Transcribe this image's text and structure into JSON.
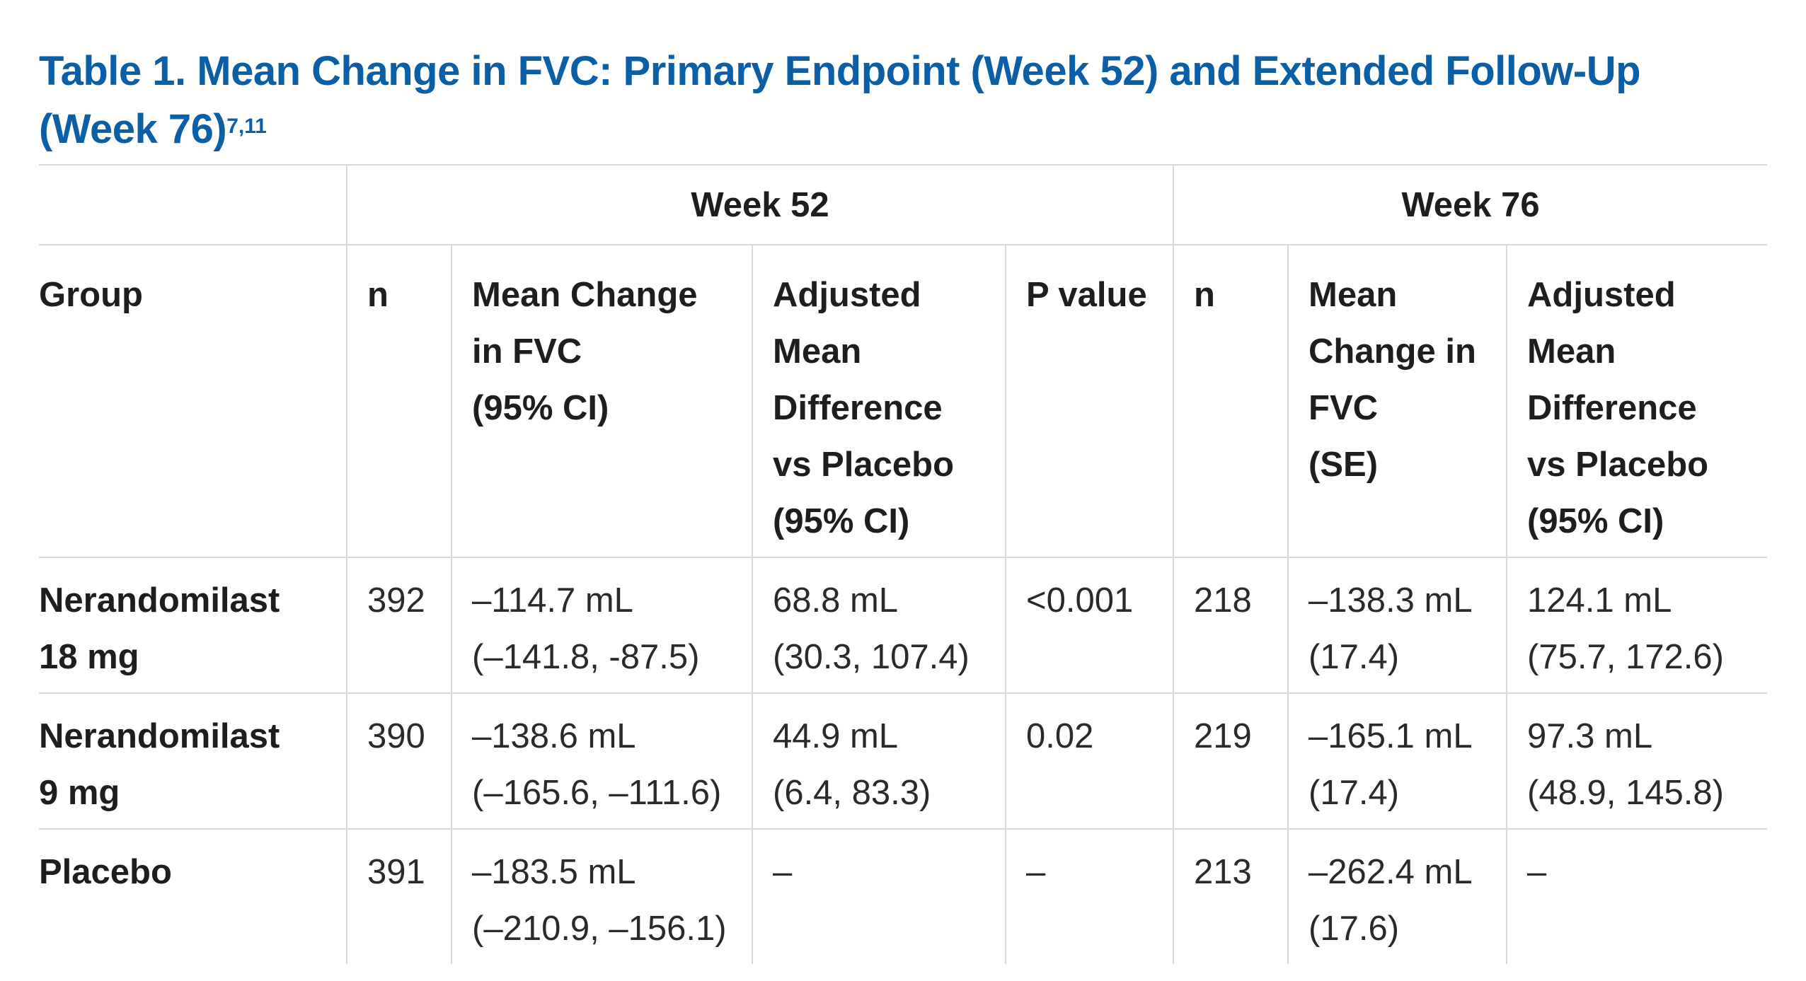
{
  "title": {
    "text": "Table 1. Mean Change in FVC: Primary Endpoint (Week 52) and Extended Follow-Up (Week 76)",
    "superscript": "7,11"
  },
  "table": {
    "span_headers": {
      "week52": "Week 52",
      "week76": "Week 76"
    },
    "columns": {
      "group": "Group",
      "n52": "n",
      "mean52": [
        "Mean Change",
        "in FVC",
        "(95% CI)"
      ],
      "adj52": [
        "Adjusted",
        "Mean",
        "Difference",
        "vs Placebo",
        "(95% CI)"
      ],
      "p52": "P value",
      "n76": "n",
      "mean76": [
        "Mean",
        "Change in",
        "FVC",
        "(SE)"
      ],
      "adj76": [
        "Adjusted",
        "Mean",
        "Difference",
        "vs Placebo",
        "(95% CI)"
      ]
    },
    "rows": [
      {
        "group": [
          "Nerandomilast",
          "18 mg"
        ],
        "n52": "392",
        "mean52": [
          "–114.7 mL",
          "(–141.8, -87.5)"
        ],
        "adj52": [
          "68.8 mL",
          "(30.3, 107.4)"
        ],
        "p52": "<0.001",
        "n76": "218",
        "mean76": [
          "–138.3 mL",
          "(17.4)"
        ],
        "adj76": [
          "124.1 mL",
          "(75.7, 172.6)"
        ]
      },
      {
        "group": [
          "Nerandomilast",
          "9 mg"
        ],
        "n52": "390",
        "mean52": [
          "–138.6 mL",
          "(–165.6, –111.6)"
        ],
        "adj52": [
          "44.9 mL",
          "(6.4, 83.3)"
        ],
        "p52": "0.02",
        "n76": "219",
        "mean76": [
          "–165.1 mL",
          "(17.4)"
        ],
        "adj76": [
          "97.3 mL",
          "(48.9, 145.8)"
        ]
      },
      {
        "group": [
          "Placebo"
        ],
        "n52": "391",
        "mean52": [
          "–183.5 mL",
          "(–210.9, –156.1)"
        ],
        "adj52": [
          "–"
        ],
        "p52": "–",
        "n76": "213",
        "mean76": [
          "–262.4 mL",
          "(17.6)"
        ],
        "adj76": [
          "–"
        ]
      }
    ]
  },
  "colors": {
    "title": "#0a5fa6",
    "rule": "#d9d9d9",
    "text": "#1e1e1e"
  }
}
